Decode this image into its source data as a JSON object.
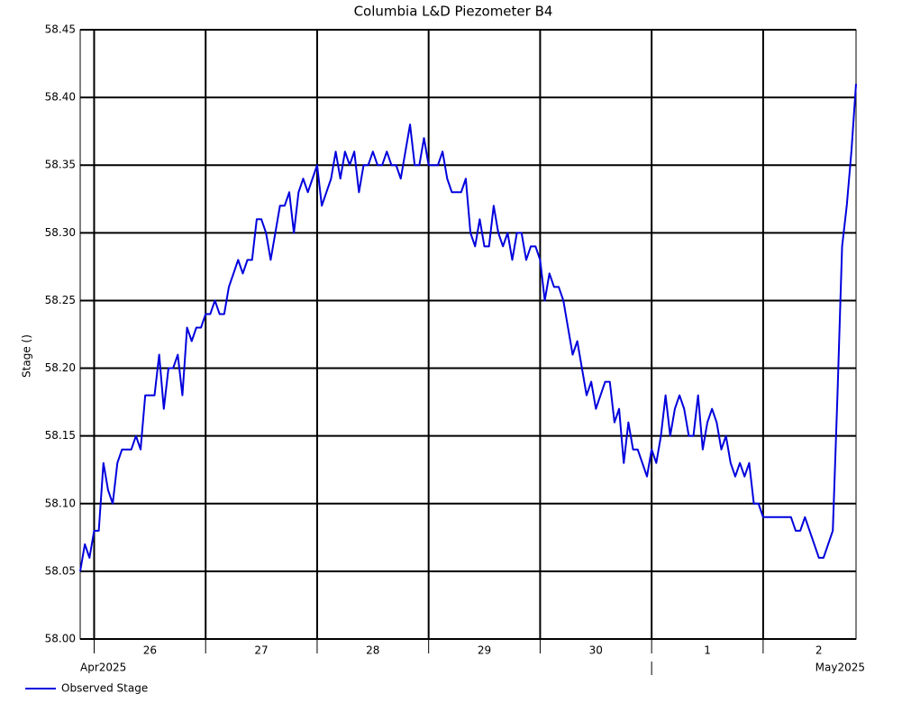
{
  "chart_data": {
    "type": "line",
    "title": "Columbia L&D Piezometer B4",
    "ylabel": "Stage ()",
    "x": [
      "2025-04-25T21:00",
      "2025-04-25T22:00",
      "2025-04-25T23:00",
      "2025-04-26T00:00",
      "2025-04-26T01:00",
      "2025-04-26T02:00",
      "2025-04-26T03:00",
      "2025-04-26T04:00",
      "2025-04-26T05:00",
      "2025-04-26T06:00",
      "2025-04-26T07:00",
      "2025-04-26T08:00",
      "2025-04-26T09:00",
      "2025-04-26T10:00",
      "2025-04-26T11:00",
      "2025-04-26T12:00",
      "2025-04-26T13:00",
      "2025-04-26T14:00",
      "2025-04-26T15:00",
      "2025-04-26T16:00",
      "2025-04-26T17:00",
      "2025-04-26T18:00",
      "2025-04-26T19:00",
      "2025-04-26T20:00",
      "2025-04-26T21:00",
      "2025-04-26T22:00",
      "2025-04-26T23:00",
      "2025-04-27T00:00",
      "2025-04-27T01:00",
      "2025-04-27T02:00",
      "2025-04-27T03:00",
      "2025-04-27T04:00",
      "2025-04-27T05:00",
      "2025-04-27T06:00",
      "2025-04-27T07:00",
      "2025-04-27T08:00",
      "2025-04-27T09:00",
      "2025-04-27T10:00",
      "2025-04-27T11:00",
      "2025-04-27T12:00",
      "2025-04-27T13:00",
      "2025-04-27T14:00",
      "2025-04-27T15:00",
      "2025-04-27T16:00",
      "2025-04-27T17:00",
      "2025-04-27T18:00",
      "2025-04-27T19:00",
      "2025-04-27T20:00",
      "2025-04-27T21:00",
      "2025-04-27T22:00",
      "2025-04-27T23:00",
      "2025-04-28T00:00",
      "2025-04-28T01:00",
      "2025-04-28T02:00",
      "2025-04-28T03:00",
      "2025-04-28T04:00",
      "2025-04-28T05:00",
      "2025-04-28T06:00",
      "2025-04-28T07:00",
      "2025-04-28T08:00",
      "2025-04-28T09:00",
      "2025-04-28T10:00",
      "2025-04-28T11:00",
      "2025-04-28T12:00",
      "2025-04-28T13:00",
      "2025-04-28T14:00",
      "2025-04-28T15:00",
      "2025-04-28T16:00",
      "2025-04-28T17:00",
      "2025-04-28T18:00",
      "2025-04-28T19:00",
      "2025-04-28T20:00",
      "2025-04-28T21:00",
      "2025-04-28T22:00",
      "2025-04-28T23:00",
      "2025-04-29T00:00",
      "2025-04-29T01:00",
      "2025-04-29T02:00",
      "2025-04-29T03:00",
      "2025-04-29T04:00",
      "2025-04-29T05:00",
      "2025-04-29T06:00",
      "2025-04-29T07:00",
      "2025-04-29T08:00",
      "2025-04-29T09:00",
      "2025-04-29T10:00",
      "2025-04-29T11:00",
      "2025-04-29T12:00",
      "2025-04-29T13:00",
      "2025-04-29T14:00",
      "2025-04-29T15:00",
      "2025-04-29T16:00",
      "2025-04-29T17:00",
      "2025-04-29T18:00",
      "2025-04-29T19:00",
      "2025-04-29T20:00",
      "2025-04-29T21:00",
      "2025-04-29T22:00",
      "2025-04-29T23:00",
      "2025-04-30T00:00",
      "2025-04-30T01:00",
      "2025-04-30T02:00",
      "2025-04-30T03:00",
      "2025-04-30T04:00",
      "2025-04-30T05:00",
      "2025-04-30T06:00",
      "2025-04-30T07:00",
      "2025-04-30T08:00",
      "2025-04-30T09:00",
      "2025-04-30T10:00",
      "2025-04-30T11:00",
      "2025-04-30T12:00",
      "2025-04-30T13:00",
      "2025-04-30T14:00",
      "2025-04-30T15:00",
      "2025-04-30T16:00",
      "2025-04-30T17:00",
      "2025-04-30T18:00",
      "2025-04-30T19:00",
      "2025-04-30T20:00",
      "2025-04-30T21:00",
      "2025-04-30T22:00",
      "2025-04-30T23:00",
      "2025-05-01T00:00",
      "2025-05-01T01:00",
      "2025-05-01T02:00",
      "2025-05-01T03:00",
      "2025-05-01T04:00",
      "2025-05-01T05:00",
      "2025-05-01T06:00",
      "2025-05-01T07:00",
      "2025-05-01T08:00",
      "2025-05-01T09:00",
      "2025-05-01T10:00",
      "2025-05-01T11:00",
      "2025-05-01T12:00",
      "2025-05-01T13:00",
      "2025-05-01T14:00",
      "2025-05-01T15:00",
      "2025-05-01T16:00",
      "2025-05-01T17:00",
      "2025-05-01T18:00",
      "2025-05-01T19:00",
      "2025-05-01T20:00",
      "2025-05-01T21:00",
      "2025-05-01T22:00",
      "2025-05-01T23:00",
      "2025-05-02T00:00",
      "2025-05-02T01:00",
      "2025-05-02T02:00",
      "2025-05-02T03:00",
      "2025-05-02T04:00",
      "2025-05-02T05:00",
      "2025-05-02T06:00",
      "2025-05-02T07:00",
      "2025-05-02T08:00",
      "2025-05-02T09:00",
      "2025-05-02T10:00",
      "2025-05-02T11:00",
      "2025-05-02T12:00",
      "2025-05-02T13:00",
      "2025-05-02T14:00",
      "2025-05-02T15:00",
      "2025-05-02T16:00",
      "2025-05-02T17:00",
      "2025-05-02T18:00",
      "2025-05-02T19:00",
      "2025-05-02T20:00"
    ],
    "series": [
      {
        "name": "Observed Stage",
        "color": "#0000dd",
        "values": [
          58.05,
          58.07,
          58.06,
          58.08,
          58.08,
          58.13,
          58.11,
          58.1,
          58.13,
          58.14,
          58.14,
          58.14,
          58.15,
          58.14,
          58.18,
          58.18,
          58.18,
          58.21,
          58.17,
          58.2,
          58.2,
          58.21,
          58.18,
          58.23,
          58.22,
          58.23,
          58.23,
          58.24,
          58.24,
          58.25,
          58.24,
          58.24,
          58.26,
          58.27,
          58.28,
          58.27,
          58.28,
          58.28,
          58.31,
          58.31,
          58.3,
          58.28,
          58.3,
          58.32,
          58.32,
          58.33,
          58.3,
          58.33,
          58.34,
          58.33,
          58.34,
          58.35,
          58.32,
          58.33,
          58.34,
          58.36,
          58.34,
          58.36,
          58.35,
          58.36,
          58.33,
          58.35,
          58.35,
          58.36,
          58.35,
          58.35,
          58.36,
          58.35,
          58.35,
          58.34,
          58.36,
          58.38,
          58.35,
          58.35,
          58.37,
          58.35,
          58.35,
          58.35,
          58.36,
          58.34,
          58.33,
          58.33,
          58.33,
          58.34,
          58.3,
          58.29,
          58.31,
          58.29,
          58.29,
          58.32,
          58.3,
          58.29,
          58.3,
          58.28,
          58.3,
          58.3,
          58.28,
          58.29,
          58.29,
          58.28,
          58.25,
          58.27,
          58.26,
          58.26,
          58.25,
          58.23,
          58.21,
          58.22,
          58.2,
          58.18,
          58.19,
          58.17,
          58.18,
          58.19,
          58.19,
          58.16,
          58.17,
          58.13,
          58.16,
          58.14,
          58.14,
          58.13,
          58.12,
          58.14,
          58.13,
          58.15,
          58.18,
          58.15,
          58.17,
          58.18,
          58.17,
          58.15,
          58.15,
          58.18,
          58.14,
          58.16,
          58.17,
          58.16,
          58.14,
          58.15,
          58.13,
          58.12,
          58.13,
          58.12,
          58.13,
          58.1,
          58.1,
          58.09,
          58.09,
          58.09,
          58.09,
          58.09,
          58.09,
          58.09,
          58.08,
          58.08,
          58.09,
          58.08,
          58.07,
          58.06,
          58.06,
          58.07,
          58.08,
          58.18,
          58.29,
          58.32,
          58.36,
          58.41
        ]
      }
    ],
    "xlim": [
      "2025-04-25T21:00",
      "2025-05-02T20:00"
    ],
    "xticks": [
      {
        "value": "2025-04-26T00:00",
        "label": "26"
      },
      {
        "value": "2025-04-27T00:00",
        "label": "27"
      },
      {
        "value": "2025-04-28T00:00",
        "label": "28"
      },
      {
        "value": "2025-04-29T00:00",
        "label": "29"
      },
      {
        "value": "2025-04-30T00:00",
        "label": "30"
      },
      {
        "value": "2025-05-01T00:00",
        "label": "1"
      },
      {
        "value": "2025-05-02T00:00",
        "label": "2"
      }
    ],
    "month_labels": [
      {
        "value": "2025-04-01T00:00",
        "label": "Apr2025"
      },
      {
        "value": "2025-05-01T00:00",
        "label": "May2025"
      }
    ],
    "ylim": [
      58.0,
      58.45
    ],
    "yticks": [
      {
        "value": 58.0,
        "label": "58.00"
      },
      58.05,
      {
        "value": 58.1,
        "label": "58.10"
      },
      58.15,
      {
        "value": 58.2,
        "label": "58.20"
      },
      58.25,
      {
        "value": 58.3,
        "label": "58.30"
      },
      58.35,
      {
        "value": 58.4,
        "label": "58.40"
      },
      58.45
    ],
    "grid": true,
    "legend": "bottom-left"
  }
}
